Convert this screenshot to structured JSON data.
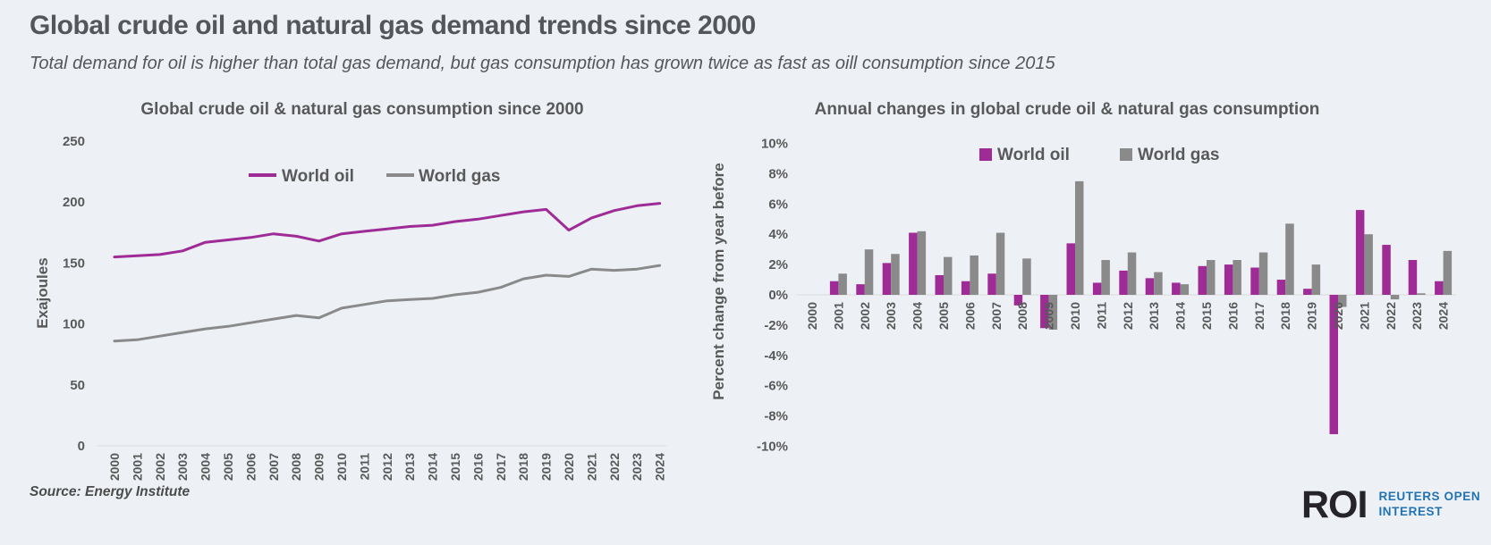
{
  "page": {
    "title": "Global crude oil and natural gas demand trends since 2000",
    "subtitle": "Total demand for oil is higher than total gas demand, but gas consumption has grown twice as fast as oill consumption since 2015",
    "source_label": "Source:  Energy Institute",
    "background_color": "#EDF1F6",
    "text_color": "#54565A"
  },
  "logo": {
    "mark": "ROI",
    "wordmark_line1": "REUTERS OPEN",
    "wordmark_line2": "INTEREST",
    "mark_color": "#26242A",
    "wordmark_color": "#2173B4"
  },
  "colors": {
    "oil": "#9E2B96",
    "gas": "#8A8A8A",
    "axis_line": "#D9D9D9",
    "tick_text": "#595959"
  },
  "chart_data": [
    {
      "type": "line",
      "title": "Global crude oil & natural gas consumption since 2000",
      "xlabel": "",
      "ylabel": "Exajoules",
      "ylim": [
        0,
        250
      ],
      "yticks": [
        0,
        50,
        100,
        150,
        200,
        250
      ],
      "grid": false,
      "legend_position": "top-center",
      "x": [
        2000,
        2001,
        2002,
        2003,
        2004,
        2005,
        2006,
        2007,
        2008,
        2009,
        2010,
        2011,
        2012,
        2013,
        2014,
        2015,
        2016,
        2017,
        2018,
        2019,
        2020,
        2021,
        2022,
        2023,
        2024
      ],
      "series": [
        {
          "name": "World oil",
          "color": "#9E2B96",
          "values": [
            155,
            156,
            157,
            160,
            167,
            169,
            171,
            174,
            172,
            168,
            174,
            176,
            178,
            180,
            181,
            184,
            186,
            189,
            192,
            194,
            177,
            187,
            193,
            197,
            199
          ]
        },
        {
          "name": "World gas",
          "color": "#8A8A8A",
          "values": [
            86,
            87,
            90,
            93,
            96,
            98,
            101,
            104,
            107,
            105,
            113,
            116,
            119,
            120,
            121,
            124,
            126,
            130,
            137,
            140,
            139,
            145,
            144,
            145,
            148
          ]
        }
      ]
    },
    {
      "type": "bar",
      "title": "Annual changes in global crude oil & natural gas consumption",
      "xlabel": "",
      "ylabel": "Percent change from year before",
      "ylim": [
        -10,
        10
      ],
      "ytick_step": 2,
      "ytick_suffix": "%",
      "grid": false,
      "legend_position": "top-center",
      "categories": [
        2000,
        2001,
        2002,
        2003,
        2004,
        2005,
        2006,
        2007,
        2008,
        2009,
        2010,
        2011,
        2012,
        2013,
        2014,
        2015,
        2016,
        2017,
        2018,
        2019,
        2020,
        2021,
        2022,
        2023,
        2024
      ],
      "series": [
        {
          "name": "World oil",
          "color": "#9E2B96",
          "values": [
            0,
            0.9,
            0.7,
            2.1,
            4.1,
            1.3,
            0.9,
            1.4,
            -0.7,
            -2.2,
            3.4,
            0.8,
            1.6,
            1.1,
            0.8,
            1.9,
            2.0,
            1.8,
            1.0,
            0.4,
            -9.2,
            5.6,
            3.3,
            2.3,
            0.9
          ]
        },
        {
          "name": "World gas",
          "color": "#8A8A8A",
          "values": [
            0,
            1.4,
            3.0,
            2.7,
            4.2,
            2.5,
            2.6,
            4.1,
            2.4,
            -2.3,
            7.5,
            2.3,
            2.8,
            1.5,
            0.7,
            2.3,
            2.3,
            2.8,
            4.7,
            2.0,
            -0.8,
            4.0,
            -0.3,
            0.1,
            2.9
          ]
        }
      ]
    }
  ]
}
